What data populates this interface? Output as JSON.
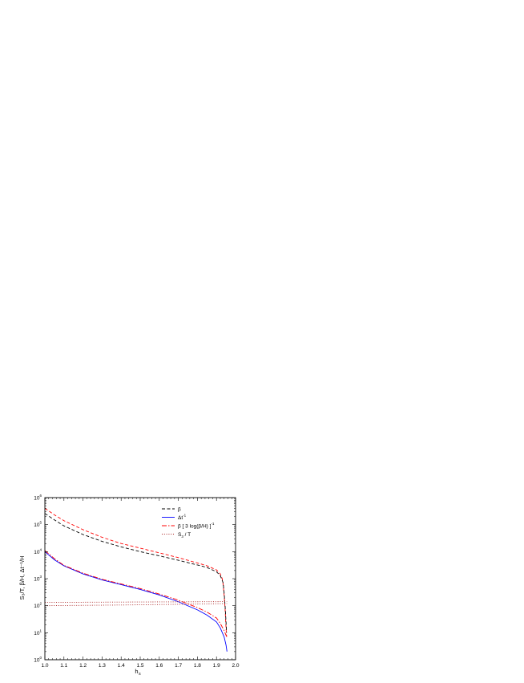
{
  "chart_data": {
    "type": "line",
    "xlabel": "h",
    "xlabel_sub": "s",
    "ylabel": "S₃/T, β/H, Δt⁻¹/H",
    "xlim": [
      1.0,
      2.0
    ],
    "ylim": [
      1,
      1000000
    ],
    "y_scale": "log",
    "x_ticks": [
      "1.0",
      "1.1",
      "1.2",
      "1.3",
      "1.4",
      "1.5",
      "1.6",
      "1.7",
      "1.8",
      "1.9",
      "2.0"
    ],
    "y_ticks": [
      {
        "base": "10",
        "exp": "0"
      },
      {
        "base": "10",
        "exp": "1"
      },
      {
        "base": "10",
        "exp": "2"
      },
      {
        "base": "10",
        "exp": "3"
      },
      {
        "base": "10",
        "exp": "4"
      },
      {
        "base": "10",
        "exp": "5"
      },
      {
        "base": "10",
        "exp": "6"
      }
    ],
    "legend_position": "top-right",
    "legend": [
      {
        "label": "β",
        "color": "#000000",
        "dash": "4,2.5"
      },
      {
        "label": "Δt",
        "sup": "-1",
        "color": "#0000ff",
        "dash": ""
      },
      {
        "label": "β [ 3 log(β/H) ]",
        "sup": "-1",
        "color": "#ff0000",
        "dash": "6,2,1.5,2"
      },
      {
        "label": "S",
        "sub": "3",
        "tail": " / T",
        "color": "#aa2222",
        "dash": "1,1.8"
      }
    ],
    "series": [
      {
        "color": "#ff0000",
        "dash": "4,2.5",
        "x": [
          1.0,
          1.05,
          1.1,
          1.2,
          1.3,
          1.4,
          1.5,
          1.6,
          1.7,
          1.8,
          1.85,
          1.9,
          1.92,
          1.93,
          1.935,
          1.94,
          1.945,
          1.95,
          1.953
        ],
        "y": [
          400000,
          230000,
          140000,
          65000,
          34000,
          20000,
          13500,
          9000,
          6000,
          3800,
          3000,
          2100,
          1500,
          1000,
          600,
          250,
          80,
          15,
          7
        ]
      },
      {
        "color": "#000000",
        "dash": "4,2.5",
        "x": [
          1.0,
          1.05,
          1.1,
          1.2,
          1.3,
          1.4,
          1.5,
          1.6,
          1.7,
          1.8,
          1.85,
          1.9,
          1.92,
          1.935,
          1.94,
          1.945,
          1.95,
          1.953
        ],
        "y": [
          260000,
          150000,
          90000,
          43000,
          24000,
          15000,
          10000,
          7000,
          4800,
          3200,
          2600,
          1800,
          1300,
          700,
          300,
          100,
          25,
          10
        ]
      },
      {
        "color": "#0000ff",
        "dash": "",
        "x": [
          1.0,
          1.05,
          1.1,
          1.2,
          1.3,
          1.4,
          1.5,
          1.6,
          1.7,
          1.8,
          1.85,
          1.9,
          1.92,
          1.94,
          1.95,
          1.955
        ],
        "y": [
          10000,
          5000,
          3000,
          1500,
          900,
          600,
          400,
          250,
          140,
          70,
          45,
          25,
          15,
          7,
          3.5,
          2
        ]
      },
      {
        "color": "#ff0000",
        "dash": "6,2,1.5,2",
        "x": [
          1.0,
          1.05,
          1.1,
          1.2,
          1.3,
          1.4,
          1.5,
          1.6,
          1.7,
          1.8,
          1.85,
          1.9,
          1.92,
          1.94,
          1.95,
          1.955
        ],
        "y": [
          11000,
          5500,
          3100,
          1600,
          950,
          640,
          430,
          270,
          160,
          85,
          58,
          35,
          22,
          12,
          8,
          7
        ]
      },
      {
        "color": "#aa2222",
        "dash": "1,1.8",
        "x": [
          1.0,
          1.2,
          1.4,
          1.6,
          1.8,
          1.9,
          1.955
        ],
        "y": [
          132,
          134,
          136,
          138,
          140,
          141,
          142
        ]
      },
      {
        "color": "#aa2222",
        "dash": "1,1.8",
        "x": [
          1.0,
          1.2,
          1.4,
          1.6,
          1.8,
          1.9,
          1.955
        ],
        "y": [
          100,
          103,
          106,
          110,
          115,
          118,
          120
        ]
      }
    ]
  }
}
